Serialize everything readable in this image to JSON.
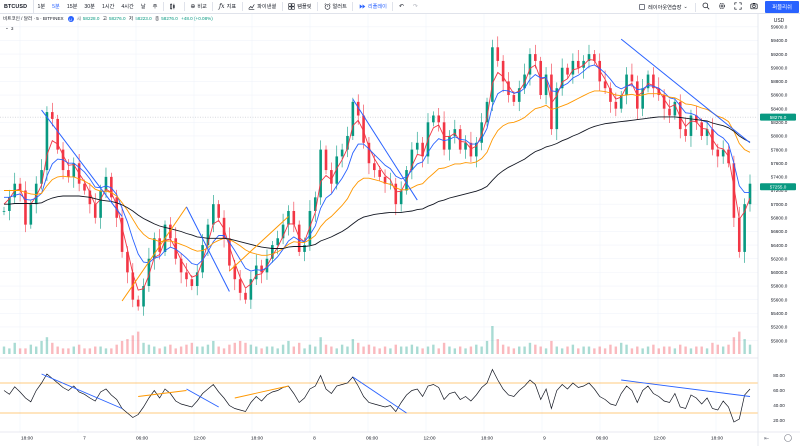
{
  "toolbar": {
    "symbol": "BTCUSD",
    "intervals": [
      "1분",
      "5분",
      "15분",
      "30분",
      "1시간",
      "4시간",
      "날",
      "주"
    ],
    "active_interval": "5분",
    "compare_label": "비교",
    "indicators_label": "지표",
    "financials_label": "파이낸셜",
    "templates_label": "템플릿",
    "alert_label": "얼러트",
    "replay_label": "리플레이",
    "layout_label": "레이아웃연습장",
    "publish_label": "퍼블리쉬",
    "icons": [
      "candles-icon",
      "plus-circle-icon",
      "indicators-icon",
      "financials-icon",
      "templates-icon",
      "alert-icon",
      "replay-icon",
      "undo-icon",
      "redo-icon",
      "layout-icon",
      "chevron-down-icon",
      "search-icon",
      "gear-icon",
      "fullscreen-icon",
      "camera-icon"
    ]
  },
  "legend": {
    "title": "비트코인 / 달러 · 5 · BITFINEX",
    "badge": "U",
    "o_label": "시",
    "o": "58228.0",
    "h_label": "고",
    "h": "58276.0",
    "l_label": "저",
    "l": "58223.0",
    "c_label": "종",
    "c": "58276.0",
    "change": "+48.0 (+0.08%)",
    "sub_count": "3"
  },
  "chart_data": {
    "type": "line",
    "title": "비트코인 / 달러 · 5 · BITFINEX",
    "currency_label": "USD",
    "price_axis": {
      "ticks": [
        59600,
        59400,
        59200,
        59000,
        58800,
        58600,
        58400,
        58200,
        58000,
        57800,
        57600,
        57400,
        57200,
        57000,
        56800,
        56600,
        56400,
        56200,
        56000,
        55800,
        55600,
        55400,
        55200,
        55000
      ],
      "ylim": [
        54950,
        59700
      ]
    },
    "price_labels": [
      {
        "value": 58276.0,
        "text": "58276.0",
        "color": "#089981"
      },
      {
        "value": 57255.0,
        "text": "57255.0",
        "color": "#089981"
      }
    ],
    "time_labels": [
      "18:00",
      "7",
      "06:00",
      "12:00",
      "18:00",
      "8",
      "06:00",
      "12:00",
      "18:00",
      "9",
      "06:00",
      "12:00",
      "18:00"
    ],
    "series": [
      {
        "color": "#089981",
        "values": [
          56900,
          57100,
          57300,
          57200,
          56700,
          57000,
          57300,
          57500,
          58350,
          58250,
          57800,
          57500,
          57400,
          57600,
          57300,
          57200,
          57000,
          56800,
          57200,
          57400,
          57100,
          56800,
          56300,
          56000,
          55600,
          55500,
          55800,
          56200,
          56500,
          56300,
          56700,
          56500,
          56200,
          56000,
          55900,
          55800,
          56000,
          56400,
          56700,
          57000,
          56800,
          56500,
          56100,
          55900,
          55700,
          55600,
          55900,
          56100,
          56000,
          56200,
          56400,
          56500,
          56700,
          56900,
          56700,
          56300,
          56400,
          56900,
          57100,
          57800,
          57500,
          57300,
          57700,
          57800,
          58000,
          58500,
          58300,
          57900,
          57600,
          57500,
          57400,
          57300,
          57300,
          57000,
          57200,
          57500,
          57800,
          57900,
          57700,
          58200,
          58300,
          58200,
          57800,
          58000,
          58100,
          57800,
          57900,
          57700,
          57900,
          58200,
          58500,
          59300,
          59100,
          58800,
          58600,
          58500,
          58700,
          58900,
          59200,
          59100,
          58600,
          58900,
          58100,
          58700,
          59000,
          58900,
          59100,
          59000,
          59100,
          59200,
          59100,
          58800,
          58700,
          58500,
          58400,
          58600,
          58900,
          58800,
          58400,
          58700,
          58900,
          58700,
          58600,
          58400,
          58300,
          58500,
          58100,
          58000,
          58300,
          58200,
          58000,
          58100,
          57800,
          57700,
          57800,
          57600,
          56800,
          56300,
          57000,
          57300
        ]
      },
      {
        "color": "#f23645",
        "values": [
          57000,
          57080,
          57200,
          57220,
          57020,
          57000,
          57120,
          57280,
          57720,
          57930,
          57880,
          57720,
          57570,
          57580,
          57450,
          57330,
          57170,
          56990,
          57070,
          57220,
          57170,
          56990,
          56660,
          56340,
          55980,
          55740,
          55760,
          55960,
          56220,
          56260,
          56470,
          56490,
          56350,
          56180,
          56050,
          55930,
          55960,
          56170,
          56430,
          56710,
          56760,
          56640,
          56380,
          56140,
          55930,
          55770,
          55830,
          55960,
          55980,
          56090,
          56240,
          56370,
          56530,
          56710,
          56710,
          56510,
          56450,
          56670,
          56880,
          57330,
          57420,
          57360,
          57520,
          57650,
          57820,
          58150,
          58230,
          58070,
          57840,
          57670,
          57540,
          57420,
          57360,
          57180,
          57190,
          57340,
          57560,
          57730,
          57710,
          57950,
          58120,
          58160,
          57990,
          57990,
          58040,
          57920,
          57910,
          57810,
          57850,
          58020,
          58260,
          58770,
          58930,
          58870,
          58740,
          58620,
          58660,
          58780,
          58990,
          59040,
          58830,
          58860,
          58480,
          58590,
          58790,
          58840,
          58970,
          58990,
          59040,
          59120,
          59110,
          58960,
          58830,
          58670,
          58540,
          58570,
          58730,
          58770,
          58590,
          58640,
          58770,
          58740,
          58670,
          58540,
          58420,
          58460,
          58280,
          58140,
          58220,
          58210,
          58110,
          58100,
          57950,
          57830,
          57810,
          57700,
          57250,
          56780,
          56890,
          57090
        ]
      },
      {
        "color": "#2962ff",
        "values": [
          57100,
          57100,
          57130,
          57150,
          57070,
          57060,
          57090,
          57160,
          57410,
          57590,
          57660,
          57650,
          57600,
          57600,
          57540,
          57470,
          57370,
          57250,
          57240,
          57270,
          57240,
          57140,
          56940,
          56740,
          56490,
          56270,
          56150,
          56140,
          56210,
          56230,
          56320,
          56370,
          56340,
          56280,
          56210,
          56130,
          56110,
          56180,
          56300,
          56450,
          56540,
          56540,
          56440,
          56320,
          56190,
          56060,
          56020,
          56040,
          56030,
          56070,
          56150,
          56230,
          56340,
          56460,
          56520,
          56470,
          56450,
          56550,
          56680,
          56940,
          57090,
          57150,
          57270,
          57380,
          57520,
          57750,
          57880,
          57880,
          57810,
          57730,
          57650,
          57570,
          57520,
          57410,
          57370,
          57400,
          57500,
          57590,
          57620,
          57760,
          57880,
          57960,
          57930,
          57950,
          57990,
          57950,
          57940,
          57880,
          57880,
          57960,
          58110,
          58440,
          58620,
          58670,
          58660,
          58630,
          58640,
          58700,
          58830,
          58900,
          58850,
          58860,
          58660,
          58650,
          58730,
          58770,
          58850,
          58890,
          58950,
          59020,
          59040,
          58990,
          58920,
          58830,
          58730,
          58690,
          58730,
          58750,
          58680,
          58690,
          58740,
          58730,
          58700,
          58640,
          58560,
          58540,
          58440,
          58340,
          58330,
          58300,
          58230,
          58200,
          58100,
          58020,
          57970,
          57880,
          57600,
          57270,
          57170,
          57170
        ]
      },
      {
        "color": "#ff9800",
        "values": [
          57200,
          57200,
          57200,
          57200,
          57170,
          57150,
          57140,
          57160,
          57270,
          57360,
          57400,
          57410,
          57400,
          57400,
          57370,
          57340,
          57290,
          57220,
          57190,
          57190,
          57170,
          57120,
          57020,
          56910,
          56780,
          56650,
          56560,
          56500,
          56480,
          56450,
          56460,
          56460,
          56440,
          56410,
          56380,
          56340,
          56310,
          56320,
          56360,
          56430,
          56470,
          56500,
          56480,
          56440,
          56390,
          56330,
          56290,
          56270,
          56250,
          56250,
          56270,
          56300,
          56350,
          56410,
          56450,
          56440,
          56440,
          56480,
          56540,
          56670,
          56760,
          56820,
          56900,
          56980,
          57080,
          57230,
          57330,
          57380,
          57380,
          57360,
          57340,
          57310,
          57290,
          57240,
          57210,
          57210,
          57240,
          57280,
          57300,
          57380,
          57450,
          57520,
          57530,
          57560,
          57590,
          57590,
          57610,
          57600,
          57620,
          57670,
          57760,
          57950,
          58080,
          58150,
          58190,
          58200,
          58230,
          58270,
          58340,
          58400,
          58420,
          58450,
          58390,
          58410,
          58440,
          58470,
          58510,
          58550,
          58590,
          58630,
          58660,
          58660,
          58650,
          58630,
          58600,
          58590,
          58600,
          58610,
          58590,
          58600,
          58620,
          58620,
          58620,
          58600,
          58570,
          58560,
          58520,
          58470,
          58460,
          58440,
          58410,
          58390,
          58340,
          58290,
          58260,
          58210,
          58070,
          57890,
          57800,
          57760
        ]
      },
      {
        "color": "#131722",
        "values": [
          57000,
          57000,
          57010,
          57010,
          57010,
          57010,
          57010,
          57020,
          57060,
          57090,
          57110,
          57120,
          57120,
          57120,
          57120,
          57110,
          57100,
          57080,
          57060,
          57050,
          57040,
          57020,
          56990,
          56950,
          56900,
          56840,
          56790,
          56750,
          56710,
          56680,
          56660,
          56640,
          56620,
          56600,
          56570,
          56550,
          56520,
          56510,
          56500,
          56500,
          56500,
          56500,
          56490,
          56470,
          56450,
          56430,
          56410,
          56390,
          56370,
          56360,
          56350,
          56350,
          56350,
          56370,
          56380,
          56380,
          56380,
          56390,
          56410,
          56460,
          56490,
          56520,
          56560,
          56600,
          56650,
          56710,
          56770,
          56810,
          56830,
          56850,
          56860,
          56870,
          56880,
          56880,
          56880,
          56890,
          56900,
          56920,
          56930,
          56970,
          57000,
          57040,
          57060,
          57090,
          57110,
          57130,
          57150,
          57170,
          57190,
          57220,
          57260,
          57350,
          57430,
          57490,
          57540,
          57580,
          57620,
          57660,
          57720,
          57770,
          57800,
          57840,
          57860,
          57890,
          57930,
          57960,
          58000,
          58030,
          58070,
          58110,
          58140,
          58160,
          58180,
          58190,
          58200,
          58210,
          58220,
          58230,
          58240,
          58250,
          58260,
          58270,
          58280,
          58280,
          58280,
          58280,
          58270,
          58260,
          58250,
          58240,
          58230,
          58220,
          58190,
          58170,
          58150,
          58120,
          58070,
          58000,
          57950,
          57910
        ]
      }
    ],
    "oscillator": {
      "upper": 70,
      "lower": 30,
      "ylim": [
        10,
        90
      ],
      "ticks": [
        80,
        60,
        40,
        20
      ],
      "values": [
        60,
        55,
        65,
        58,
        50,
        45,
        60,
        70,
        82,
        76,
        70,
        64,
        60,
        66,
        58,
        55,
        50,
        46,
        58,
        62,
        54,
        48,
        36,
        30,
        24,
        28,
        38,
        50,
        60,
        50,
        62,
        56,
        46,
        42,
        40,
        38,
        46,
        56,
        62,
        68,
        58,
        50,
        40,
        36,
        34,
        32,
        44,
        52,
        46,
        54,
        58,
        60,
        64,
        66,
        56,
        44,
        50,
        62,
        66,
        80,
        62,
        56,
        66,
        68,
        70,
        78,
        66,
        52,
        44,
        42,
        40,
        38,
        40,
        32,
        44,
        54,
        60,
        62,
        52,
        66,
        68,
        64,
        48,
        56,
        58,
        48,
        52,
        46,
        54,
        64,
        70,
        88,
        74,
        62,
        54,
        52,
        60,
        66,
        74,
        68,
        48,
        62,
        36,
        60,
        68,
        62,
        70,
        64,
        66,
        70,
        62,
        52,
        48,
        42,
        40,
        56,
        66,
        60,
        44,
        60,
        66,
        56,
        52,
        46,
        44,
        56,
        38,
        36,
        54,
        50,
        42,
        50,
        36,
        34,
        46,
        38,
        18,
        22,
        54,
        62
      ]
    },
    "volume": [
      4,
      3,
      6,
      3,
      3,
      5,
      4,
      7,
      9,
      6,
      4,
      3,
      3,
      4,
      5,
      3,
      3,
      4,
      4,
      3,
      3,
      5,
      7,
      8,
      10,
      12,
      6,
      5,
      4,
      3,
      4,
      5,
      3,
      4,
      5,
      6,
      4,
      4,
      5,
      7,
      4,
      3,
      5,
      6,
      7,
      6,
      5,
      4,
      3,
      4,
      4,
      3,
      5,
      7,
      4,
      6,
      3,
      5,
      4,
      9,
      5,
      4,
      3,
      5,
      4,
      8,
      6,
      4,
      5,
      4,
      3,
      4,
      3,
      5,
      4,
      4,
      5,
      4,
      3,
      4,
      5,
      3,
      6,
      4,
      3,
      4,
      3,
      4,
      5,
      4,
      7,
      15,
      8,
      5,
      4,
      3,
      4,
      4,
      6,
      5,
      4,
      3,
      7,
      4,
      3,
      4,
      5,
      3,
      4,
      4,
      3,
      4,
      3,
      5,
      4,
      6,
      5,
      3,
      4,
      3,
      4,
      5,
      3,
      4,
      4,
      3,
      5,
      4,
      3,
      4,
      4,
      3,
      6,
      5,
      4,
      5,
      9,
      12,
      8,
      5
    ],
    "trendlines": [
      {
        "color": "#2962ff",
        "from": [
          7,
          58380
        ],
        "to": [
          22,
          56820
        ]
      },
      {
        "color": "#ff9800",
        "from": [
          22,
          55580
        ],
        "to": [
          34,
          56960
        ]
      },
      {
        "color": "#2962ff",
        "from": [
          34,
          56960
        ],
        "to": [
          42,
          55720
        ]
      },
      {
        "color": "#ff9800",
        "from": [
          42,
          56020
        ],
        "to": [
          53,
          56820
        ]
      },
      {
        "color": "#2962ff",
        "from": [
          65,
          58540
        ],
        "to": [
          77,
          57060
        ]
      },
      {
        "color": "#2962ff",
        "from": [
          115,
          59420
        ],
        "to": [
          139,
          57900
        ]
      }
    ],
    "osc_trendlines": [
      {
        "color": "#2962ff",
        "from": [
          7,
          82
        ],
        "to": [
          22,
          36
        ]
      },
      {
        "color": "#ff9800",
        "from": [
          25,
          52
        ],
        "to": [
          34,
          60
        ]
      },
      {
        "color": "#2962ff",
        "from": [
          34,
          62
        ],
        "to": [
          40,
          38
        ]
      },
      {
        "color": "#ff9800",
        "from": [
          43,
          50
        ],
        "to": [
          53,
          66
        ]
      },
      {
        "color": "#2962ff",
        "from": [
          65,
          78
        ],
        "to": [
          75,
          30
        ]
      },
      {
        "color": "#2962ff",
        "from": [
          115,
          74
        ],
        "to": [
          139,
          52
        ]
      }
    ]
  }
}
